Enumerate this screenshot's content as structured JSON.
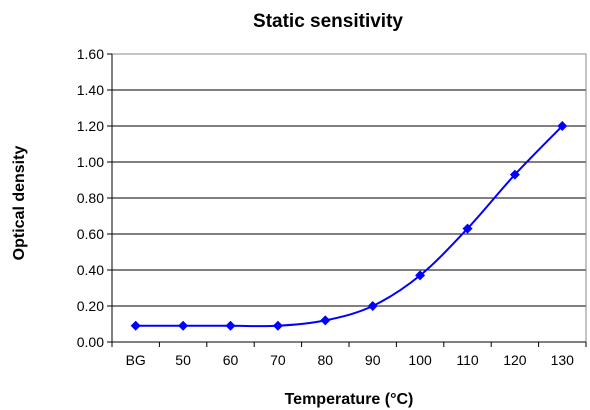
{
  "chart_data": {
    "type": "line",
    "title": "Static sensitivity",
    "xlabel": "Temperature (°C)",
    "ylabel": "Optical density",
    "categories": [
      "BG",
      "50",
      "60",
      "70",
      "80",
      "90",
      "100",
      "110",
      "120",
      "130"
    ],
    "y_ticks": [
      "0.00",
      "0.20",
      "0.40",
      "0.60",
      "0.80",
      "1.00",
      "1.20",
      "1.40",
      "1.60"
    ],
    "ylim": [
      0,
      1.6
    ],
    "grid": true,
    "series": [
      {
        "values": [
          0.09,
          0.09,
          0.09,
          0.09,
          0.12,
          0.2,
          0.37,
          0.63,
          0.93,
          1.2
        ],
        "color": "#0000ff",
        "marker": "diamond",
        "smooth": true
      }
    ]
  }
}
